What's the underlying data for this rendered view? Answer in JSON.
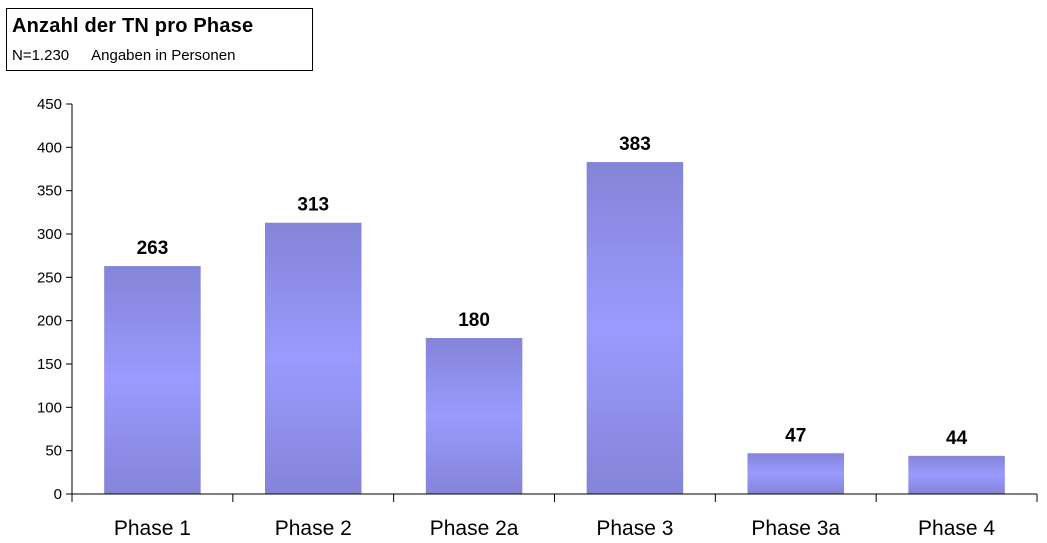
{
  "chart_data": {
    "type": "bar",
    "title": "Anzahl der TN pro Phase",
    "subtitle_n": "N=1.230",
    "subtitle_unit": "Angaben in Personen",
    "categories": [
      "Phase 1",
      "Phase 2",
      "Phase 2a",
      "Phase 3",
      "Phase 3a",
      "Phase 4"
    ],
    "values": [
      263,
      313,
      180,
      383,
      47,
      44
    ],
    "ylim": [
      0,
      450
    ],
    "yticks": [
      0,
      50,
      100,
      150,
      200,
      250,
      300,
      350,
      400,
      450
    ],
    "grid": false,
    "legend": "none",
    "colors": {
      "bar_edge": "#8484d8",
      "bar_center": "#9a9aff",
      "axis": "#000000"
    }
  }
}
